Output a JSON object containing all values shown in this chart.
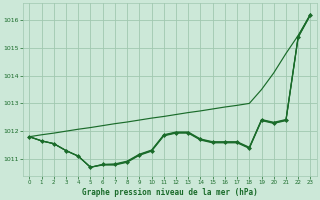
{
  "title": "Graphe pression niveau de la mer (hPa)",
  "background_color": "#cce8d8",
  "grid_color": "#a0c8b0",
  "line_color": "#1a6b2a",
  "marker_color": "#1a6b2a",
  "xlim": [
    -0.5,
    23.5
  ],
  "ylim": [
    1010.4,
    1016.6
  ],
  "yticks": [
    1011,
    1012,
    1013,
    1014,
    1015,
    1016
  ],
  "xticks": [
    0,
    1,
    2,
    3,
    4,
    5,
    6,
    7,
    8,
    9,
    10,
    11,
    12,
    13,
    14,
    15,
    16,
    17,
    18,
    19,
    20,
    21,
    22,
    23
  ],
  "y_smooth": [
    1011.8,
    1011.87,
    1011.93,
    1012.0,
    1012.07,
    1012.13,
    1012.2,
    1012.27,
    1012.33,
    1012.4,
    1012.47,
    1012.53,
    1012.6,
    1012.67,
    1012.73,
    1012.8,
    1012.87,
    1012.93,
    1013.0,
    1013.5,
    1014.1,
    1014.8,
    1015.45,
    1016.2
  ],
  "y_main": [
    1011.8,
    1011.65,
    1011.55,
    1011.3,
    1011.1,
    1010.7,
    1010.8,
    1010.8,
    1010.9,
    1011.15,
    1011.3,
    1011.85,
    1011.95,
    1011.95,
    1011.7,
    1011.6,
    1011.6,
    1011.6,
    1011.4,
    1012.4,
    1012.3,
    1012.4,
    1015.4,
    1016.2
  ],
  "y_second": [
    1011.8,
    1011.65,
    1011.55,
    1011.3,
    1011.1,
    1010.7,
    1010.8,
    1010.82,
    1010.92,
    1011.17,
    1011.32,
    1011.87,
    1011.97,
    1011.97,
    1011.72,
    1011.62,
    1011.62,
    1011.62,
    1011.42,
    1012.42,
    1012.32,
    1012.42,
    1015.42,
    1016.22
  ],
  "y_third": [
    1011.8,
    1011.65,
    1011.55,
    1011.3,
    1011.1,
    1010.7,
    1010.78,
    1010.78,
    1010.88,
    1011.13,
    1011.28,
    1011.83,
    1011.93,
    1011.93,
    1011.68,
    1011.58,
    1011.58,
    1011.58,
    1011.38,
    1012.38,
    1012.28,
    1012.38,
    1015.38,
    1016.18
  ]
}
